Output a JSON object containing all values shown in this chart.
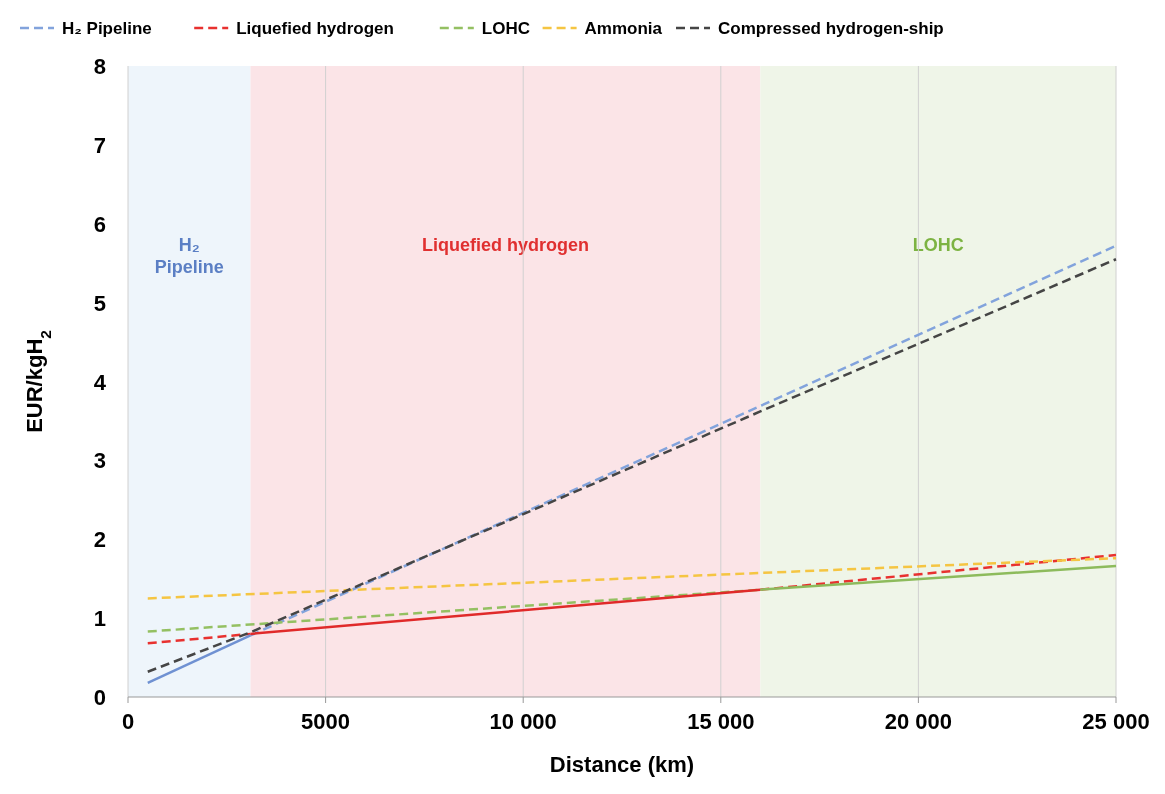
{
  "chart_data": {
    "type": "line",
    "xlabel": "Distance (km)",
    "ylabel": "EUR/kgH$_{2}$",
    "xlim": [
      0,
      25000
    ],
    "ylim": [
      0,
      8
    ],
    "xticks": [
      0,
      5000,
      {
        "value": 10000,
        "label": "10 000"
      },
      {
        "value": 15000,
        "label": "15 000"
      },
      {
        "value": 20000,
        "label": "20 000"
      },
      {
        "value": 25000,
        "label": "25 000"
      }
    ],
    "yticks": [
      0,
      1,
      2,
      3,
      4,
      5,
      6,
      7,
      8
    ],
    "grid": "x",
    "legend": "top",
    "bands": [
      {
        "axis": "x",
        "from": 0,
        "to": 3100,
        "label": "H₂ Pipeline",
        "color": "#eef5fb"
      },
      {
        "axis": "x",
        "from": 3100,
        "to": 16000,
        "label": "Liquefied hydrogen",
        "color": "#fbe4e7"
      },
      {
        "axis": "x",
        "from": 16000,
        "to": 25000,
        "label": "LOHC",
        "color": "#eff5e8"
      }
    ],
    "series": [
      {
        "name": "H₂ Pipeline",
        "color": "#82a3dc",
        "line_style": "dashed",
        "x": [
          3100,
          16000,
          25000
        ],
        "values": [
          0.78,
          3.69,
          5.72
        ]
      },
      {
        "color": "#6f91d2",
        "line_style": "solid",
        "x": [
          500,
          3100
        ],
        "values": [
          0.18,
          0.78
        ]
      },
      {
        "name": "Liquefied hydrogen",
        "color": "#e8312f",
        "line_style": "dashed",
        "x": [
          500,
          3100,
          9000,
          16000,
          25000
        ],
        "values": [
          0.68,
          0.8,
          null,
          1.36,
          1.8
        ]
      },
      {
        "color": "#e02a2a",
        "line_style": "solid",
        "x": [
          3100,
          16000
        ],
        "values": [
          0.8,
          1.36
        ]
      },
      {
        "name": "LOHC",
        "color": "#94c062",
        "line_style": "dashed",
        "x": [
          500,
          16000
        ],
        "values": [
          0.83,
          1.36
        ]
      },
      {
        "color": "#8dbb5c",
        "line_style": "solid",
        "x": [
          16000,
          25000
        ],
        "values": [
          1.36,
          1.66
        ]
      },
      {
        "name": "Ammonia",
        "color": "#f5c542",
        "line_style": "dashed",
        "x": [
          500,
          25000
        ],
        "values": [
          1.25,
          1.76
        ]
      },
      {
        "name": "Compressed hydrogen-ship",
        "color": "#454545",
        "line_style": "dashed",
        "x": [
          500,
          3100,
          16000,
          25000
        ],
        "values": [
          0.32,
          0.82,
          3.62,
          5.55
        ]
      }
    ]
  }
}
